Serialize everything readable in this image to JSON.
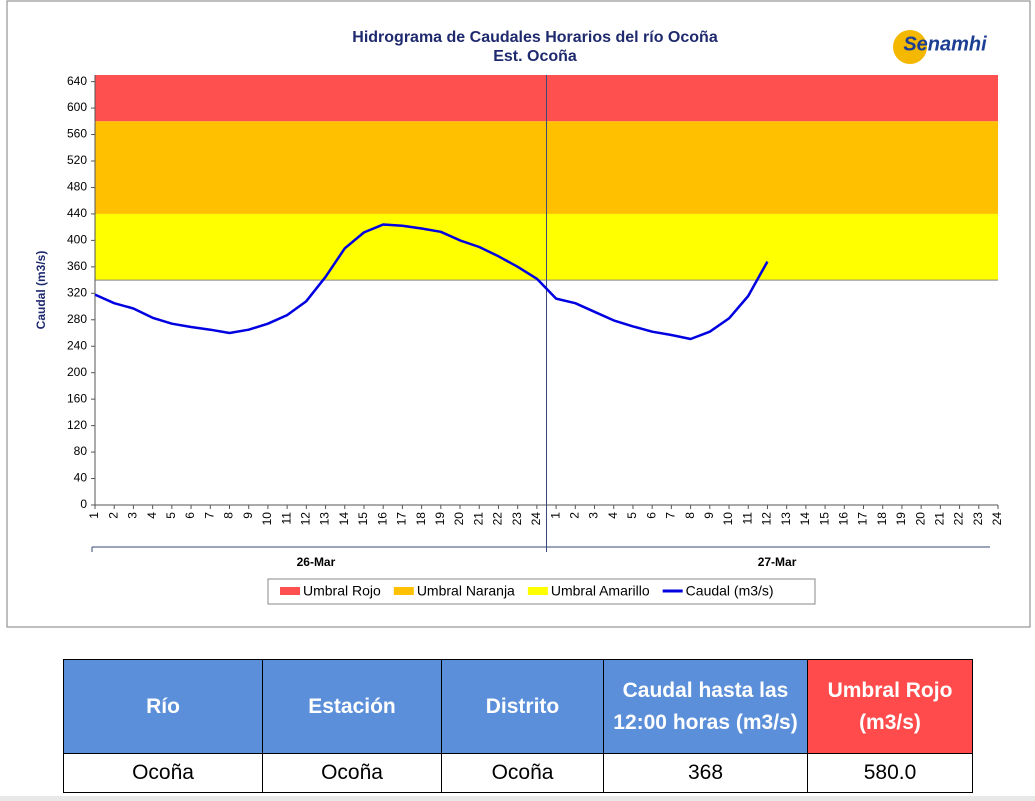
{
  "chart_data": {
    "type": "line",
    "title": "Hidrograma de Caudales Horarios del río Ocoña",
    "subtitle": "Est. Ocoña",
    "logo": "Senamhi",
    "y_label": "Caudal  (m3/s)",
    "categories": [
      "1",
      "2",
      "3",
      "4",
      "5",
      "6",
      "7",
      "8",
      "9",
      "10",
      "11",
      "12",
      "13",
      "14",
      "15",
      "16",
      "17",
      "18",
      "19",
      "20",
      "21",
      "22",
      "23",
      "24",
      "1",
      "2",
      "3",
      "4",
      "5",
      "6",
      "7",
      "8",
      "9",
      "10",
      "11",
      "12",
      "13",
      "14",
      "15",
      "16",
      "17",
      "18",
      "19",
      "20",
      "21",
      "22",
      "23",
      "24"
    ],
    "groups": [
      {
        "label": "26-Mar"
      },
      {
        "label": "27-Mar"
      }
    ],
    "bands": [
      {
        "name": "Umbral Rojo",
        "color": "#ff5050",
        "range": [
          580,
          650
        ]
      },
      {
        "name": "Umbral Naranja",
        "color": "#ffc000",
        "range": [
          440,
          580
        ]
      },
      {
        "name": "Umbral Amarillo",
        "color": "#ffff00",
        "range": [
          340,
          440
        ]
      }
    ],
    "series": [
      {
        "name": "Caudal (m3/s)",
        "color": "#0000e0",
        "values": [
          318,
          305,
          297,
          283,
          274,
          269,
          265,
          260,
          265,
          274,
          287,
          308,
          345,
          388,
          412,
          424,
          422,
          418,
          413,
          400,
          390,
          376,
          360,
          342,
          312,
          305,
          292,
          279,
          270,
          262,
          257,
          251,
          262,
          282,
          316,
          368,
          null,
          null,
          null,
          null,
          null,
          null,
          null,
          null,
          null,
          null,
          null,
          null
        ]
      }
    ],
    "ylim": [
      0,
      650
    ],
    "yticks": [
      0,
      40,
      80,
      120,
      160,
      200,
      240,
      280,
      320,
      360,
      400,
      440,
      480,
      520,
      560,
      600,
      640
    ]
  },
  "table": {
    "header": [
      "Río",
      "Estación",
      "Distrito",
      "Caudal hasta las 12:00 horas (m3/s)",
      "Umbral  Rojo (m3/s)"
    ],
    "rows": [
      [
        "Ocoña",
        "Ocoña",
        "Ocoña",
        "368",
        "580.0"
      ]
    ]
  }
}
